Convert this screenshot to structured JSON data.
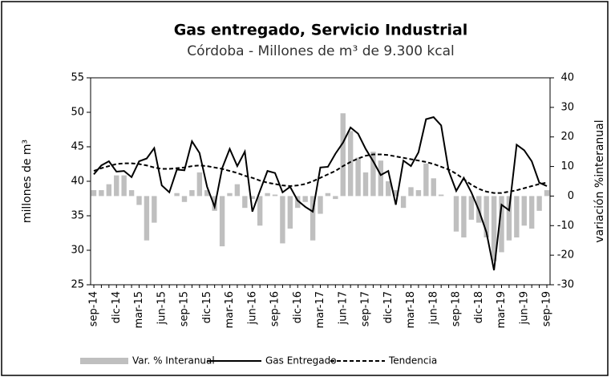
{
  "chart_data": {
    "type": "bar-line",
    "title": "Gas entregado, Servicio Industrial",
    "subtitle": "Córdoba - Millones de m³ de 9.300 kcal",
    "y_label": "millones de m³",
    "y2_label": "variación %interanual",
    "categories": [
      "sep-14",
      null,
      null,
      "dic-14",
      null,
      null,
      "mar-15",
      null,
      null,
      "jun-15",
      null,
      null,
      "sep-15",
      null,
      null,
      "dic-15",
      null,
      null,
      "mar-16",
      null,
      null,
      "jun-16",
      null,
      null,
      "sep-16",
      null,
      null,
      "dic-16",
      null,
      null,
      "mar-17",
      null,
      null,
      "jun-17",
      null,
      null,
      "sep-17",
      null,
      null,
      "dic-17",
      null,
      null,
      "mar-18",
      null,
      null,
      "jun-18",
      null,
      null,
      "sep-18",
      null,
      null,
      "dic-18",
      null,
      null,
      "mar-19",
      null,
      null,
      "jun-19",
      null,
      null,
      "sep-19"
    ],
    "series": [
      {
        "name": "Var. % Interanual",
        "type": "bar",
        "axis": "y2",
        "color": "#bfbfbf",
        "values": [
          2,
          2,
          4,
          7,
          7,
          2,
          -3,
          -15,
          -9,
          0,
          0,
          1,
          -2,
          2,
          8,
          2,
          -5,
          -17,
          1,
          4,
          -4,
          -1,
          -10,
          1,
          0.5,
          -16,
          -11,
          -4,
          -2,
          -15,
          -6,
          1,
          -1,
          28,
          22,
          13,
          8,
          15,
          12,
          5,
          2,
          -4,
          3,
          2,
          11,
          6,
          0.5,
          0,
          -12,
          -14,
          -8,
          -9,
          -14,
          -22,
          -19,
          -15,
          -14,
          -10,
          -11,
          -5,
          2
        ]
      },
      {
        "name": "Gas Entregado",
        "type": "line",
        "axis": "y",
        "color": "#000000",
        "style": "solid",
        "values": [
          41.0,
          42.3,
          42.9,
          41.4,
          41.5,
          40.6,
          42.9,
          43.3,
          44.8,
          39.4,
          38.4,
          41.7,
          41.6,
          45.8,
          44.1,
          39.2,
          36.3,
          41.9,
          44.7,
          42.2,
          44.3,
          35.6,
          38.6,
          41.5,
          41.2,
          38.4,
          39.2,
          37.2,
          36.3,
          35.6,
          42.0,
          42.1,
          44.0,
          45.6,
          47.8,
          46.9,
          44.7,
          42.9,
          40.9,
          41.5,
          36.6,
          43.0,
          42.2,
          44.2,
          49.0,
          49.3,
          48.1,
          41.5,
          38.6,
          40.5,
          38.4,
          35.8,
          32.6,
          27.1,
          36.6,
          35.8,
          45.3,
          44.5,
          42.9,
          39.8,
          39.3
        ]
      },
      {
        "name": "Tendencia",
        "type": "line",
        "axis": "y",
        "color": "#000000",
        "style": "dashed",
        "values": [
          41.5,
          41.9,
          42.2,
          42.5,
          42.6,
          42.6,
          42.5,
          42.3,
          42.0,
          41.8,
          41.8,
          41.9,
          42.0,
          42.2,
          42.3,
          42.2,
          42.0,
          41.8,
          41.5,
          41.2,
          40.8,
          40.5,
          40.1,
          39.8,
          39.6,
          39.4,
          39.3,
          39.4,
          39.6,
          40.0,
          40.5,
          41.0,
          41.5,
          42.2,
          42.8,
          43.3,
          43.7,
          43.9,
          43.9,
          43.8,
          43.6,
          43.4,
          43.2,
          43.0,
          42.8,
          42.5,
          42.1,
          41.7,
          41.1,
          40.3,
          39.5,
          38.9,
          38.5,
          38.3,
          38.3,
          38.5,
          38.7,
          39.0,
          39.3,
          39.6,
          39.8
        ]
      }
    ],
    "ylim": [
      25,
      55
    ],
    "yticks": [
      25,
      30,
      35,
      40,
      45,
      50,
      55
    ],
    "y2lim": [
      -30,
      40
    ],
    "y2ticks": [
      -30,
      -20,
      -10,
      0,
      10,
      20,
      30,
      40
    ]
  }
}
